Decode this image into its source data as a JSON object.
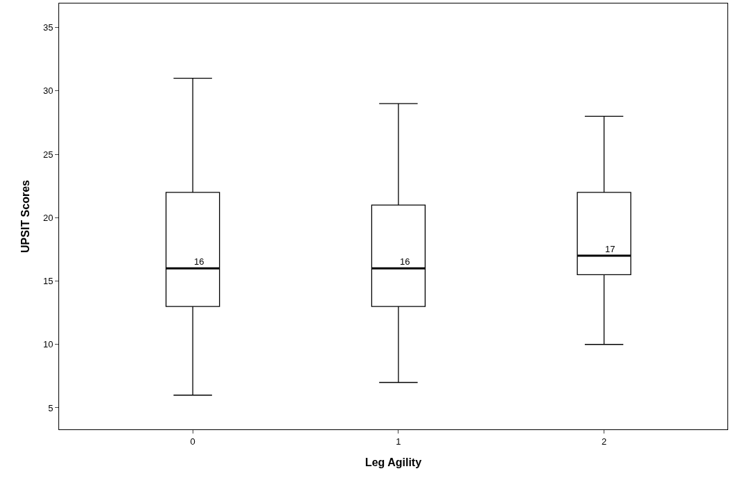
{
  "chart_data": {
    "type": "box",
    "xlabel": "Leg Agility",
    "ylabel": "UPSIT Scores",
    "categories": [
      "0",
      "1",
      "2"
    ],
    "boxes": [
      {
        "low": 6,
        "q1": 13,
        "median": 16,
        "q3": 22,
        "high": 31
      },
      {
        "low": 7,
        "q1": 13,
        "median": 16,
        "q3": 21,
        "high": 29
      },
      {
        "low": 10,
        "q1": 15.5,
        "median": 17,
        "q3": 22,
        "high": 28
      }
    ],
    "ylim": [
      3.3,
      36.9
    ],
    "yticks": [
      5,
      10,
      15,
      20,
      25,
      30,
      35
    ],
    "grid": false,
    "legend": false,
    "annotations": [
      {
        "text": "16",
        "x": "0",
        "y": 16
      },
      {
        "text": "16",
        "x": "1",
        "y": 16
      },
      {
        "text": "17",
        "x": "2",
        "y": 17
      }
    ]
  }
}
